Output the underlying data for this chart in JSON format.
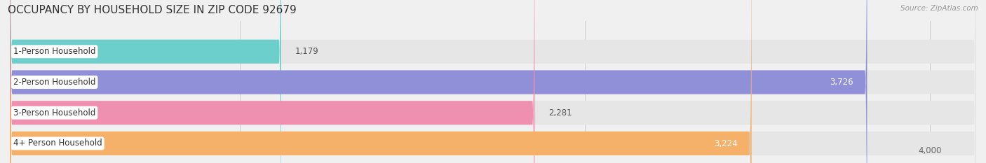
{
  "title": "OCCUPANCY BY HOUSEHOLD SIZE IN ZIP CODE 92679",
  "source": "Source: ZipAtlas.com",
  "categories": [
    "1-Person Household",
    "2-Person Household",
    "3-Person Household",
    "4+ Person Household"
  ],
  "values": [
    1179,
    3726,
    2281,
    3224
  ],
  "bar_colors": [
    "#6dcfcc",
    "#9090d8",
    "#f090b0",
    "#f5b06a"
  ],
  "bg_color": "#f0f0f0",
  "row_bg_color": "#e8e8e8",
  "xlim": [
    0,
    4200
  ],
  "xmin": 0,
  "xticks": [
    1000,
    2500,
    4000
  ],
  "bar_height": 0.78,
  "label_fontsize": 8.5,
  "value_fontsize": 8.5,
  "title_fontsize": 11,
  "source_fontsize": 7.5
}
